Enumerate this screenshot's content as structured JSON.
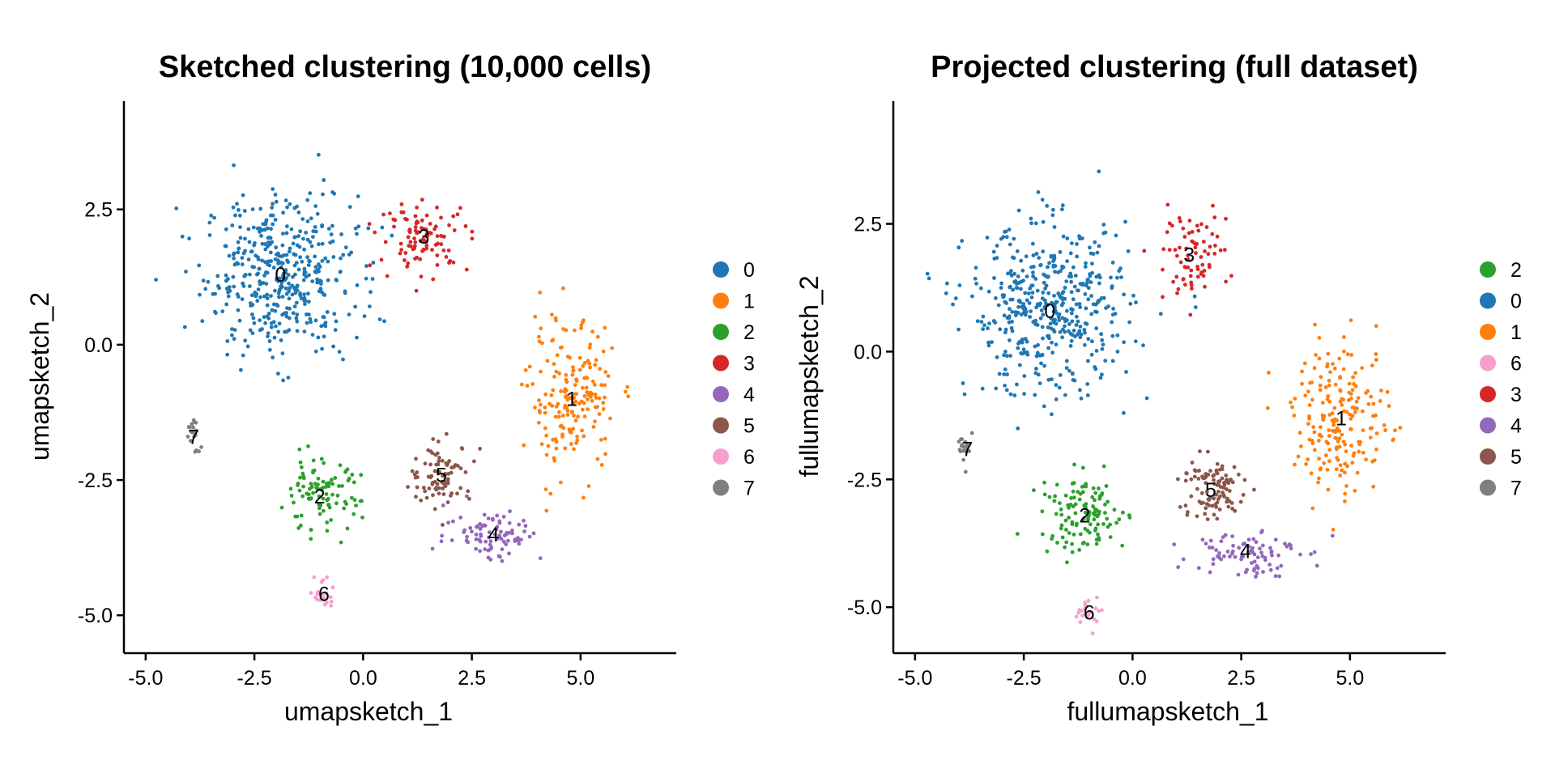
{
  "figure": {
    "panel_count": 2
  },
  "cluster_colors": {
    "0": "#1F77B4",
    "1": "#FF7F0E",
    "2": "#2CA02C",
    "3": "#D62728",
    "4": "#9467BD",
    "5": "#8C564B",
    "6": "#F7A0CF",
    "7": "#7F7F7F"
  },
  "chart_data": [
    {
      "type": "scatter",
      "title": "Sketched clustering (10,000 cells)",
      "xlabel": "umapsketch_1",
      "ylabel": "umapsketch_2",
      "xlim": [
        -5.5,
        7.2
      ],
      "ylim": [
        -5.7,
        4.5
      ],
      "xticks": [
        -5.0,
        -2.5,
        0.0,
        2.5,
        5.0
      ],
      "xtick_labels": [
        "-5.0",
        "-2.5",
        "0.0",
        "2.5",
        "5.0"
      ],
      "yticks": [
        -5.0,
        -2.5,
        0.0,
        2.5
      ],
      "ytick_labels": [
        "-5.0",
        "-2.5",
        "0.0",
        "2.5"
      ],
      "legend_position": "right",
      "legend": [
        "0",
        "1",
        "2",
        "3",
        "4",
        "5",
        "6",
        "7"
      ],
      "point_count": 10000,
      "clusters": [
        {
          "id": "0",
          "label_pos": [
            -1.9,
            1.3
          ],
          "spread": [
            1.6,
            1.35
          ],
          "fraction": 0.4
        },
        {
          "id": "1",
          "label_pos": [
            4.8,
            -1.0
          ],
          "spread": [
            0.9,
            1.25
          ],
          "fraction": 0.17
        },
        {
          "id": "2",
          "label_pos": [
            -1.0,
            -2.8
          ],
          "spread": [
            0.85,
            0.6
          ],
          "fraction": 0.09
        },
        {
          "id": "3",
          "label_pos": [
            1.4,
            2.0
          ],
          "spread": [
            0.95,
            0.55
          ],
          "fraction": 0.09
        },
        {
          "id": "4",
          "label_pos": [
            3.0,
            -3.5
          ],
          "spread": [
            1.0,
            0.45
          ],
          "fraction": 0.08
        },
        {
          "id": "5",
          "label_pos": [
            1.8,
            -2.4
          ],
          "spread": [
            0.65,
            0.5
          ],
          "fraction": 0.08
        },
        {
          "id": "6",
          "label_pos": [
            -0.9,
            -4.6
          ],
          "spread": [
            0.2,
            0.35
          ],
          "fraction": 0.015
        },
        {
          "id": "7",
          "label_pos": [
            -3.9,
            -1.7
          ],
          "spread": [
            0.15,
            0.35
          ],
          "fraction": 0.015
        }
      ]
    },
    {
      "type": "scatter",
      "title": "Projected clustering (full dataset)",
      "xlabel": "fullumapsketch_1",
      "ylabel": "fullumapsketch_2",
      "xlim": [
        -5.5,
        7.2
      ],
      "ylim": [
        -5.9,
        4.9
      ],
      "xticks": [
        -5.0,
        -2.5,
        0.0,
        2.5,
        5.0
      ],
      "xtick_labels": [
        "-5.0",
        "-2.5",
        "0.0",
        "2.5",
        "5.0"
      ],
      "yticks": [
        -5.0,
        -2.5,
        0.0,
        2.5
      ],
      "ytick_labels": [
        "-5.0",
        "-2.5",
        "0.0",
        "2.5"
      ],
      "legend_position": "right",
      "legend": [
        "2",
        "0",
        "1",
        "6",
        "3",
        "4",
        "5",
        "7"
      ],
      "clusters": [
        {
          "id": "0",
          "label_pos": [
            -1.9,
            0.8
          ],
          "spread": [
            1.7,
            1.5
          ],
          "fraction": 0.42
        },
        {
          "id": "1",
          "label_pos": [
            4.8,
            -1.3
          ],
          "spread": [
            1.0,
            1.35
          ],
          "fraction": 0.18
        },
        {
          "id": "2",
          "label_pos": [
            -1.1,
            -3.2
          ],
          "spread": [
            0.9,
            0.7
          ],
          "fraction": 0.11
        },
        {
          "id": "3",
          "label_pos": [
            1.3,
            1.9
          ],
          "spread": [
            0.8,
            0.75
          ],
          "fraction": 0.07
        },
        {
          "id": "4",
          "label_pos": [
            2.6,
            -3.9
          ],
          "spread": [
            1.1,
            0.45
          ],
          "fraction": 0.08
        },
        {
          "id": "5",
          "label_pos": [
            1.8,
            -2.7
          ],
          "spread": [
            0.7,
            0.6
          ],
          "fraction": 0.09
        },
        {
          "id": "6",
          "label_pos": [
            -1.0,
            -5.1
          ],
          "spread": [
            0.25,
            0.3
          ],
          "fraction": 0.02
        },
        {
          "id": "7",
          "label_pos": [
            -3.8,
            -1.9
          ],
          "spread": [
            0.2,
            0.3
          ],
          "fraction": 0.015
        }
      ]
    }
  ]
}
